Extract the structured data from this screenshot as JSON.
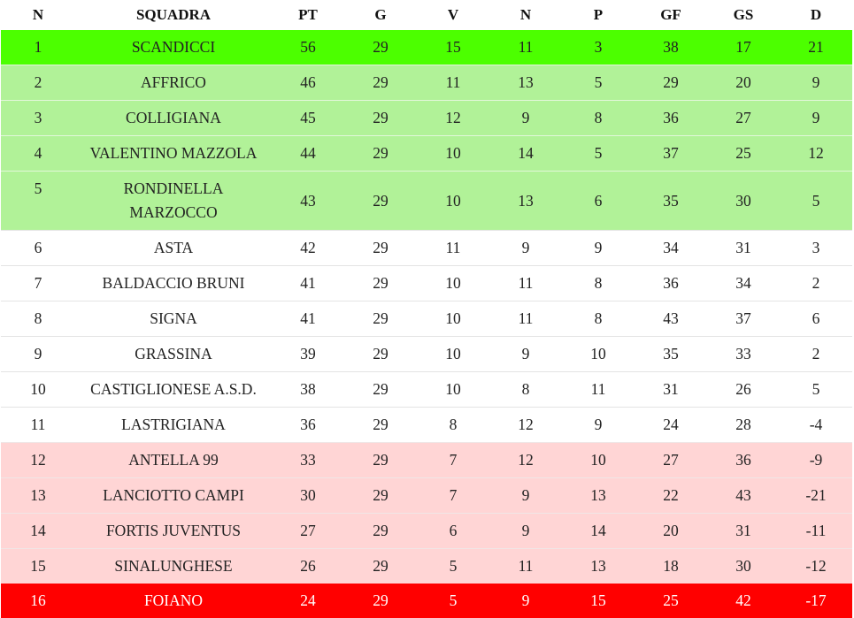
{
  "table": {
    "headers": [
      "N",
      "SQUADRA",
      "PT",
      "G",
      "V",
      "N",
      "P",
      "GF",
      "GS",
      "D"
    ],
    "zone_colors": {
      "top": "#4cff00",
      "promo": "#b1f298",
      "normal": "#ffffff",
      "relpo": "#ffd5d5",
      "releg": "#ff0000"
    },
    "rows": [
      {
        "zone": "top",
        "cells": [
          "1",
          "SCANDICCI",
          "56",
          "29",
          "15",
          "11",
          "3",
          "38",
          "17",
          "21"
        ]
      },
      {
        "zone": "promo",
        "cells": [
          "2",
          "AFFRICO",
          "46",
          "29",
          "11",
          "13",
          "5",
          "29",
          "20",
          "9"
        ]
      },
      {
        "zone": "promo",
        "cells": [
          "3",
          "COLLIGIANA",
          "45",
          "29",
          "12",
          "9",
          "8",
          "36",
          "27",
          "9"
        ]
      },
      {
        "zone": "promo",
        "cells": [
          "4",
          "VALENTINO MAZZOLA",
          "44",
          "29",
          "10",
          "14",
          "5",
          "37",
          "25",
          "12"
        ]
      },
      {
        "zone": "promo",
        "cells": [
          "5",
          "RONDINELLA MARZOCCO",
          "43",
          "29",
          "10",
          "13",
          "6",
          "35",
          "30",
          "5"
        ]
      },
      {
        "zone": "normal",
        "cells": [
          "6",
          "ASTA",
          "42",
          "29",
          "11",
          "9",
          "9",
          "34",
          "31",
          "3"
        ]
      },
      {
        "zone": "normal",
        "cells": [
          "7",
          "BALDACCIO BRUNI",
          "41",
          "29",
          "10",
          "11",
          "8",
          "36",
          "34",
          "2"
        ]
      },
      {
        "zone": "normal",
        "cells": [
          "8",
          "SIGNA",
          "41",
          "29",
          "10",
          "11",
          "8",
          "43",
          "37",
          "6"
        ]
      },
      {
        "zone": "normal",
        "cells": [
          "9",
          "GRASSINA",
          "39",
          "29",
          "10",
          "9",
          "10",
          "35",
          "33",
          "2"
        ]
      },
      {
        "zone": "normal",
        "cells": [
          "10",
          "CASTIGLIONESE A.S.D.",
          "38",
          "29",
          "10",
          "8",
          "11",
          "31",
          "26",
          "5"
        ]
      },
      {
        "zone": "normal",
        "cells": [
          "11",
          "LASTRIGIANA",
          "36",
          "29",
          "8",
          "12",
          "9",
          "24",
          "28",
          "-4"
        ]
      },
      {
        "zone": "relpo",
        "cells": [
          "12",
          "ANTELLA 99",
          "33",
          "29",
          "7",
          "12",
          "10",
          "27",
          "36",
          "-9"
        ]
      },
      {
        "zone": "relpo",
        "cells": [
          "13",
          "LANCIOTTO CAMPI",
          "30",
          "29",
          "7",
          "9",
          "13",
          "22",
          "43",
          "-21"
        ]
      },
      {
        "zone": "relpo",
        "cells": [
          "14",
          "FORTIS JUVENTUS",
          "27",
          "29",
          "6",
          "9",
          "14",
          "20",
          "31",
          "-11"
        ]
      },
      {
        "zone": "relpo",
        "cells": [
          "15",
          "SINALUNGHESE",
          "26",
          "29",
          "5",
          "11",
          "13",
          "18",
          "30",
          "-12"
        ]
      },
      {
        "zone": "releg",
        "cells": [
          "16",
          "FOIANO",
          "24",
          "29",
          "5",
          "9",
          "15",
          "25",
          "42",
          "-17"
        ]
      }
    ]
  }
}
